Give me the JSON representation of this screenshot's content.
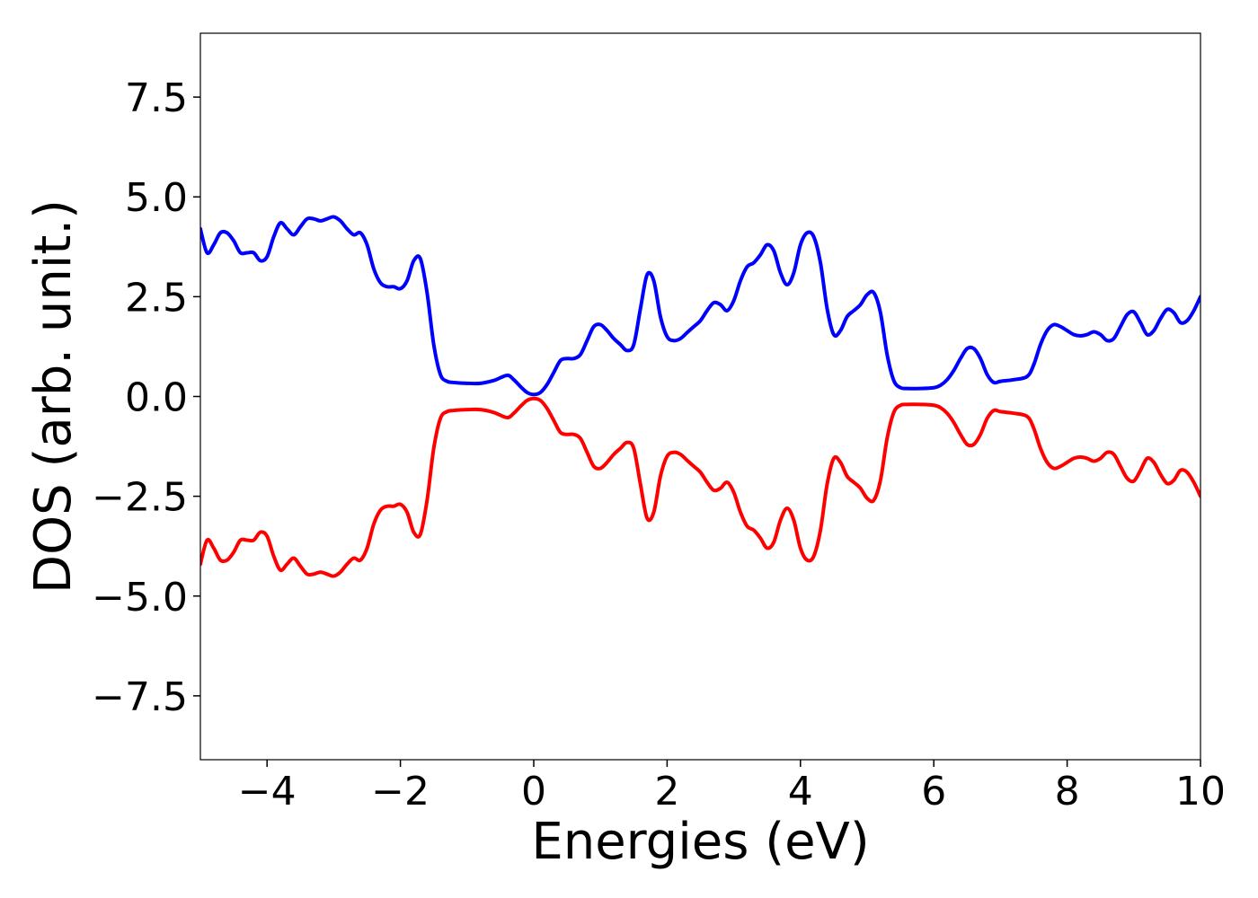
{
  "chart_data": {
    "type": "line",
    "xlabel": "Energies (eV)",
    "ylabel": "DOS (arb. unit.)",
    "xlim": [
      -5,
      10
    ],
    "ylim": [
      -9.1,
      9.1
    ],
    "xticks": [
      -4,
      -2,
      0,
      2,
      4,
      6,
      8,
      10
    ],
    "xtick_labels": [
      "−4",
      "−2",
      "0",
      "2",
      "4",
      "6",
      "8",
      "10"
    ],
    "yticks": [
      -7.5,
      -5.0,
      -2.5,
      0.0,
      2.5,
      5.0,
      7.5
    ],
    "ytick_labels": [
      "−7.5",
      "−5.0",
      "−2.5",
      "0.0",
      "2.5",
      "5.0",
      "7.5"
    ],
    "grid": false,
    "legend": "none",
    "series": [
      {
        "color": "#0000ff",
        "x": [
          -5.0,
          -4.9,
          -4.8,
          -4.7,
          -4.6,
          -4.5,
          -4.4,
          -4.3,
          -4.2,
          -4.1,
          -4.0,
          -3.9,
          -3.8,
          -3.7,
          -3.6,
          -3.5,
          -3.4,
          -3.3,
          -3.2,
          -3.1,
          -3.0,
          -2.9,
          -2.8,
          -2.7,
          -2.6,
          -2.5,
          -2.4,
          -2.3,
          -2.2,
          -2.1,
          -2.0,
          -1.9,
          -1.8,
          -1.7,
          -1.6,
          -1.5,
          -1.4,
          -1.3,
          -1.2,
          -1.0,
          -0.8,
          -0.6,
          -0.4,
          -0.3,
          -0.2,
          -0.1,
          0.0,
          0.1,
          0.2,
          0.3,
          0.4,
          0.5,
          0.6,
          0.7,
          0.8,
          0.9,
          1.0,
          1.1,
          1.2,
          1.3,
          1.4,
          1.5,
          1.6,
          1.7,
          1.8,
          1.9,
          2.0,
          2.1,
          2.2,
          2.3,
          2.4,
          2.5,
          2.6,
          2.7,
          2.8,
          2.9,
          3.0,
          3.1,
          3.2,
          3.3,
          3.4,
          3.5,
          3.6,
          3.7,
          3.8,
          3.9,
          4.0,
          4.1,
          4.2,
          4.3,
          4.4,
          4.5,
          4.6,
          4.7,
          4.8,
          4.9,
          5.0,
          5.1,
          5.2,
          5.3,
          5.4,
          5.5,
          5.6,
          5.8,
          6.0,
          6.1,
          6.2,
          6.3,
          6.4,
          6.5,
          6.6,
          6.7,
          6.8,
          6.9,
          7.0,
          7.2,
          7.4,
          7.5,
          7.6,
          7.7,
          7.8,
          7.9,
          8.0,
          8.1,
          8.2,
          8.3,
          8.4,
          8.5,
          8.6,
          8.7,
          8.8,
          8.9,
          9.0,
          9.1,
          9.2,
          9.3,
          9.4,
          9.5,
          9.6,
          9.7,
          9.8,
          9.9,
          10.0
        ],
        "y": [
          4.2,
          3.6,
          3.8,
          4.1,
          4.1,
          3.9,
          3.6,
          3.6,
          3.6,
          3.4,
          3.5,
          4.0,
          4.35,
          4.2,
          4.05,
          4.25,
          4.45,
          4.45,
          4.4,
          4.45,
          4.5,
          4.4,
          4.2,
          4.05,
          4.1,
          3.8,
          3.2,
          2.85,
          2.75,
          2.75,
          2.7,
          2.9,
          3.4,
          3.45,
          2.6,
          1.3,
          0.55,
          0.38,
          0.35,
          0.33,
          0.33,
          0.4,
          0.53,
          0.42,
          0.25,
          0.1,
          0.05,
          0.1,
          0.3,
          0.6,
          0.9,
          0.95,
          0.95,
          1.05,
          1.4,
          1.75,
          1.8,
          1.65,
          1.45,
          1.3,
          1.15,
          1.3,
          2.2,
          3.05,
          2.9,
          2.0,
          1.5,
          1.4,
          1.45,
          1.6,
          1.75,
          1.9,
          2.15,
          2.35,
          2.3,
          2.15,
          2.4,
          2.9,
          3.25,
          3.35,
          3.55,
          3.8,
          3.65,
          3.1,
          2.8,
          3.1,
          3.8,
          4.1,
          4.0,
          3.35,
          2.2,
          1.55,
          1.65,
          2.0,
          2.15,
          2.3,
          2.55,
          2.6,
          2.1,
          1.05,
          0.4,
          0.22,
          0.2,
          0.2,
          0.22,
          0.28,
          0.42,
          0.65,
          0.95,
          1.2,
          1.2,
          0.95,
          0.55,
          0.35,
          0.38,
          0.42,
          0.5,
          0.8,
          1.3,
          1.65,
          1.8,
          1.75,
          1.65,
          1.55,
          1.52,
          1.55,
          1.62,
          1.55,
          1.4,
          1.45,
          1.75,
          2.05,
          2.12,
          1.85,
          1.55,
          1.65,
          1.95,
          2.18,
          2.1,
          1.85,
          1.9,
          2.15,
          2.5
        ]
      },
      {
        "color": "#ff0000",
        "x": [
          -5.0,
          -4.9,
          -4.8,
          -4.7,
          -4.6,
          -4.5,
          -4.4,
          -4.3,
          -4.2,
          -4.1,
          -4.0,
          -3.9,
          -3.8,
          -3.7,
          -3.6,
          -3.5,
          -3.4,
          -3.3,
          -3.2,
          -3.1,
          -3.0,
          -2.9,
          -2.8,
          -2.7,
          -2.6,
          -2.5,
          -2.4,
          -2.3,
          -2.2,
          -2.1,
          -2.0,
          -1.9,
          -1.8,
          -1.7,
          -1.6,
          -1.5,
          -1.4,
          -1.3,
          -1.2,
          -1.0,
          -0.8,
          -0.6,
          -0.4,
          -0.3,
          -0.2,
          -0.1,
          0.0,
          0.1,
          0.2,
          0.3,
          0.4,
          0.5,
          0.6,
          0.7,
          0.8,
          0.9,
          1.0,
          1.1,
          1.2,
          1.3,
          1.4,
          1.5,
          1.6,
          1.7,
          1.8,
          1.9,
          2.0,
          2.1,
          2.2,
          2.3,
          2.4,
          2.5,
          2.6,
          2.7,
          2.8,
          2.9,
          3.0,
          3.1,
          3.2,
          3.3,
          3.4,
          3.5,
          3.6,
          3.7,
          3.8,
          3.9,
          4.0,
          4.1,
          4.2,
          4.3,
          4.4,
          4.5,
          4.6,
          4.7,
          4.8,
          4.9,
          5.0,
          5.1,
          5.2,
          5.3,
          5.4,
          5.5,
          5.6,
          5.8,
          6.0,
          6.1,
          6.2,
          6.3,
          6.4,
          6.5,
          6.6,
          6.7,
          6.8,
          6.9,
          7.0,
          7.2,
          7.4,
          7.5,
          7.6,
          7.7,
          7.8,
          7.9,
          8.0,
          8.1,
          8.2,
          8.3,
          8.4,
          8.5,
          8.6,
          8.7,
          8.8,
          8.9,
          9.0,
          9.1,
          9.2,
          9.3,
          9.4,
          9.5,
          9.6,
          9.7,
          9.8,
          9.9,
          10.0
        ],
        "y": [
          -4.2,
          -3.6,
          -3.8,
          -4.1,
          -4.1,
          -3.9,
          -3.6,
          -3.6,
          -3.6,
          -3.4,
          -3.5,
          -4.0,
          -4.35,
          -4.2,
          -4.05,
          -4.25,
          -4.45,
          -4.45,
          -4.4,
          -4.45,
          -4.5,
          -4.4,
          -4.2,
          -4.05,
          -4.1,
          -3.8,
          -3.2,
          -2.85,
          -2.75,
          -2.75,
          -2.7,
          -2.9,
          -3.4,
          -3.45,
          -2.6,
          -1.3,
          -0.55,
          -0.38,
          -0.35,
          -0.33,
          -0.33,
          -0.4,
          -0.53,
          -0.42,
          -0.25,
          -0.1,
          -0.05,
          -0.1,
          -0.3,
          -0.6,
          -0.9,
          -0.95,
          -0.95,
          -1.05,
          -1.4,
          -1.75,
          -1.8,
          -1.65,
          -1.45,
          -1.3,
          -1.15,
          -1.3,
          -2.2,
          -3.05,
          -2.9,
          -2.0,
          -1.5,
          -1.4,
          -1.45,
          -1.6,
          -1.75,
          -1.9,
          -2.15,
          -2.35,
          -2.3,
          -2.15,
          -2.4,
          -2.9,
          -3.25,
          -3.35,
          -3.55,
          -3.8,
          -3.65,
          -3.1,
          -2.8,
          -3.1,
          -3.8,
          -4.1,
          -4.0,
          -3.35,
          -2.2,
          -1.55,
          -1.65,
          -2.0,
          -2.15,
          -2.3,
          -2.55,
          -2.6,
          -2.1,
          -1.05,
          -0.4,
          -0.22,
          -0.2,
          -0.2,
          -0.22,
          -0.28,
          -0.42,
          -0.65,
          -0.95,
          -1.2,
          -1.2,
          -0.95,
          -0.55,
          -0.35,
          -0.38,
          -0.42,
          -0.5,
          -0.8,
          -1.3,
          -1.65,
          -1.8,
          -1.75,
          -1.65,
          -1.55,
          -1.52,
          -1.55,
          -1.62,
          -1.55,
          -1.4,
          -1.45,
          -1.75,
          -2.05,
          -2.12,
          -1.85,
          -1.55,
          -1.65,
          -1.95,
          -2.18,
          -2.1,
          -1.85,
          -1.9,
          -2.15,
          -2.5
        ]
      }
    ]
  }
}
